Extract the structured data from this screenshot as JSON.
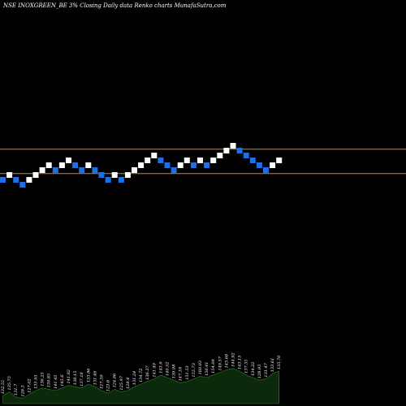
{
  "header": {
    "title": "NSE INOXGREEN_BE 3% Closing Daily data Renko charts MunafaSutra.com"
  },
  "colors": {
    "background": "#000000",
    "up_brick": "#ffffff",
    "down_brick": "#1f6fe0",
    "reference_line": "#d08a1e",
    "volume_fill": "#0b2a0b",
    "volume_stroke": "#2f7f2f"
  },
  "chart_data": {
    "type": "renko",
    "brick_size": "3%",
    "bricks": [
      {
        "col": 0,
        "level": 0,
        "dir": "down"
      },
      {
        "col": 1,
        "level": 1,
        "dir": "up"
      },
      {
        "col": 2,
        "level": 0,
        "dir": "down"
      },
      {
        "col": 3,
        "level": -1,
        "dir": "down"
      },
      {
        "col": 4,
        "level": 0,
        "dir": "up"
      },
      {
        "col": 5,
        "level": 1,
        "dir": "up"
      },
      {
        "col": 6,
        "level": 2,
        "dir": "up"
      },
      {
        "col": 7,
        "level": 3,
        "dir": "up"
      },
      {
        "col": 8,
        "level": 2,
        "dir": "down"
      },
      {
        "col": 9,
        "level": 3,
        "dir": "up"
      },
      {
        "col": 10,
        "level": 4,
        "dir": "up"
      },
      {
        "col": 11,
        "level": 3,
        "dir": "down"
      },
      {
        "col": 12,
        "level": 2,
        "dir": "down"
      },
      {
        "col": 13,
        "level": 3,
        "dir": "up"
      },
      {
        "col": 14,
        "level": 2,
        "dir": "down"
      },
      {
        "col": 15,
        "level": 1,
        "dir": "down"
      },
      {
        "col": 16,
        "level": 0,
        "dir": "down"
      },
      {
        "col": 17,
        "level": 1,
        "dir": "up"
      },
      {
        "col": 18,
        "level": 0,
        "dir": "down"
      },
      {
        "col": 19,
        "level": 1,
        "dir": "up"
      },
      {
        "col": 20,
        "level": 2,
        "dir": "up"
      },
      {
        "col": 21,
        "level": 3,
        "dir": "up"
      },
      {
        "col": 22,
        "level": 4,
        "dir": "up"
      },
      {
        "col": 23,
        "level": 5,
        "dir": "up"
      },
      {
        "col": 24,
        "level": 4,
        "dir": "down"
      },
      {
        "col": 25,
        "level": 3,
        "dir": "down"
      },
      {
        "col": 26,
        "level": 2,
        "dir": "down"
      },
      {
        "col": 27,
        "level": 3,
        "dir": "up"
      },
      {
        "col": 28,
        "level": 4,
        "dir": "up"
      },
      {
        "col": 29,
        "level": 3,
        "dir": "down"
      },
      {
        "col": 30,
        "level": 4,
        "dir": "up"
      },
      {
        "col": 31,
        "level": 3,
        "dir": "down"
      },
      {
        "col": 32,
        "level": 4,
        "dir": "up"
      },
      {
        "col": 33,
        "level": 5,
        "dir": "up"
      },
      {
        "col": 34,
        "level": 6,
        "dir": "up"
      },
      {
        "col": 35,
        "level": 7,
        "dir": "up"
      },
      {
        "col": 36,
        "level": 6,
        "dir": "down"
      },
      {
        "col": 37,
        "level": 5,
        "dir": "down"
      },
      {
        "col": 38,
        "level": 4,
        "dir": "down"
      },
      {
        "col": 39,
        "level": 3,
        "dir": "down"
      },
      {
        "col": 40,
        "level": 2,
        "dir": "down"
      },
      {
        "col": 41,
        "level": 3,
        "dir": "up"
      },
      {
        "col": 42,
        "level": 4,
        "dir": "up"
      }
    ],
    "reference_lines": [
      {
        "name": "upper",
        "level": 6.3
      },
      {
        "name": "lower",
        "level": 1.3
      }
    ],
    "volume": {
      "values": [
        6,
        9,
        5,
        4,
        7,
        10,
        12,
        11,
        10,
        12,
        14,
        13,
        12,
        15,
        13,
        10,
        8,
        11,
        9,
        10,
        13,
        15,
        17,
        19,
        22,
        20,
        18,
        16,
        17,
        19,
        21,
        20,
        22,
        24,
        26,
        27,
        25,
        22,
        20,
        18,
        19,
        23,
        25
      ],
      "labels": [
        "132.55",
        "135.75",
        "131.7",
        "128.3",
        "127.02",
        "135.95",
        "136.25",
        "139.85",
        "141.45",
        "145.6",
        "141.92",
        "138.15",
        "137.18",
        "133.86",
        "131.46",
        "127.39",
        "123.6",
        "124.86",
        "125.97",
        "128.4",
        "131.24",
        "134.72",
        "136.37",
        "141.49",
        "143.9",
        "140.52",
        "139.98",
        "147.18",
        "151.53",
        "155.73",
        "160.03",
        "156.41",
        "154.09",
        "149.57",
        "143.68",
        "144.92",
        "143.15",
        "137.31",
        "134.22",
        "128.93",
        "131.47",
        "133.61",
        "135.76"
      ]
    }
  }
}
